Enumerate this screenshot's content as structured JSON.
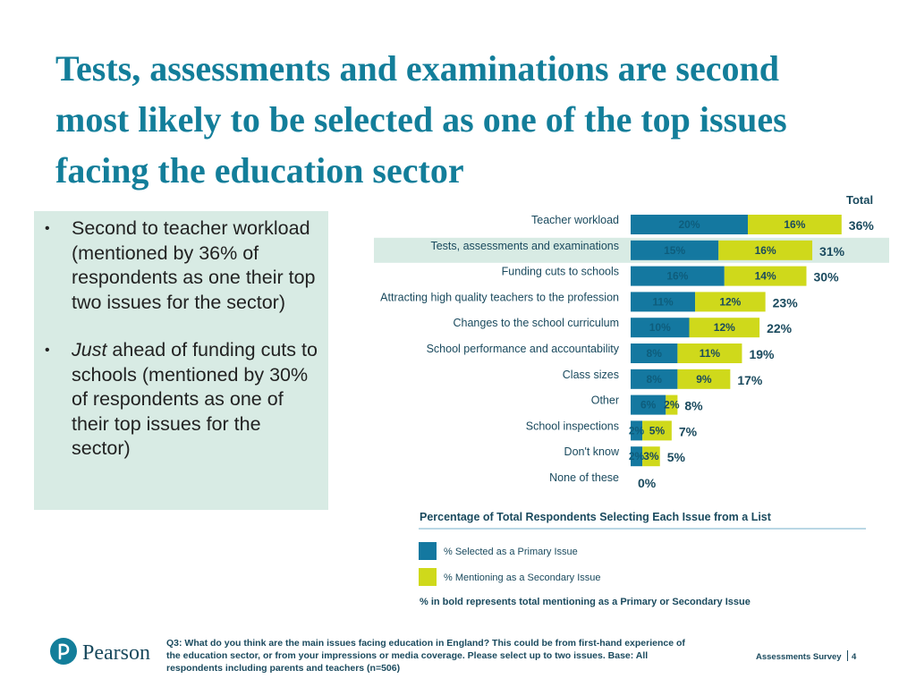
{
  "title_lines": [
    "Tests, assessments and examinations are second",
    "most likely to be selected as one of the top issues",
    "facing the education sector"
  ],
  "bullets": {
    "b1": "Second to teacher workload (mentioned by 36% of respondents as one their top two issues for the sector)",
    "b2_italic": "Just",
    "b2_rest": " ahead of funding cuts to schools (mentioned by 30% of respondents as one of their top issues for the sector)"
  },
  "colors": {
    "title": "#137e9a",
    "primary": "#1478a0",
    "secondary": "#cfd91b",
    "highlight_row": "#d8ebe4",
    "total_text": "#1a4a5e"
  },
  "chart_data": {
    "type": "bar",
    "orientation": "horizontal",
    "stacked": true,
    "title": "Percentage of Total Respondents Selecting Each Issue from a List",
    "total_header": "Total",
    "highlight_category": "Tests, assessments and examinations",
    "categories": [
      "Teacher workload",
      "Tests, assessments and examinations",
      "Funding cuts to schools",
      "Attracting high quality teachers to the profession",
      "Changes to the school curriculum",
      "School performance and accountability",
      "Class sizes",
      "Other",
      "School inspections",
      "Don't know",
      "None of these"
    ],
    "series": [
      {
        "name": "% Selected as a Primary Issue",
        "values": [
          20,
          15,
          16,
          11,
          10,
          8,
          8,
          6,
          2,
          2,
          0
        ]
      },
      {
        "name": "% Mentioning as a Secondary Issue",
        "values": [
          16,
          16,
          14,
          12,
          12,
          11,
          9,
          2,
          5,
          3,
          0
        ]
      }
    ],
    "totals": [
      36,
      31,
      30,
      23,
      22,
      19,
      17,
      8,
      7,
      5,
      0
    ],
    "value_suffix": "%"
  },
  "legend": {
    "primary_label": "% Selected as a Primary Issue",
    "secondary_label": "% Mentioning as a Secondary Issue",
    "note": "% in bold represents total mentioning as a Primary or Secondary Issue"
  },
  "footer": {
    "question": "Q3: What do you think are the main issues facing education in England? This could be from first-hand experience of the education sector, or from your impressions or media coverage. Please select up to two issues. Base: All respondents including parents and teachers (n=506)",
    "brand": "Pearson",
    "survey_name": "Assessments Survey",
    "page_number": "4"
  }
}
